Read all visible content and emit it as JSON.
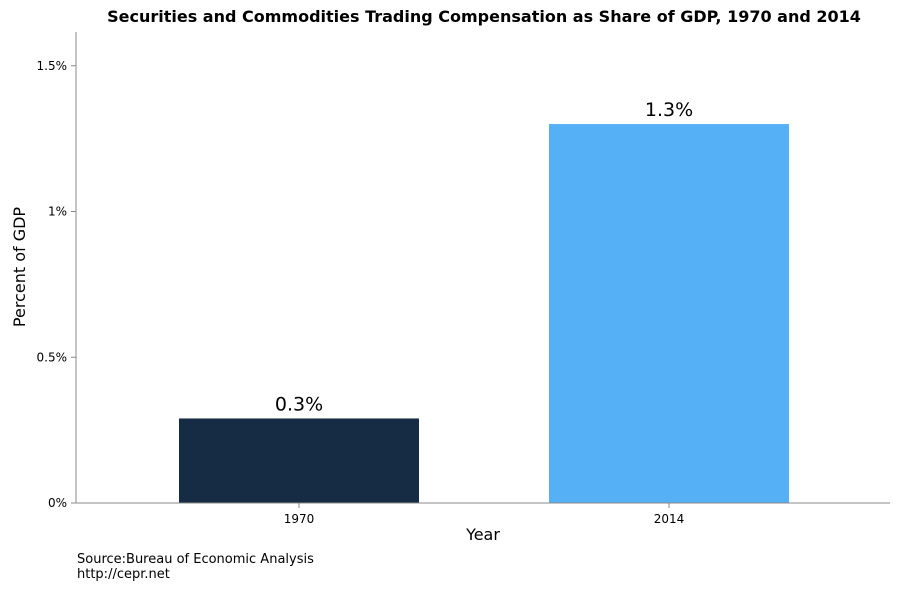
{
  "chart_data": {
    "type": "bar",
    "title": "Securities and Commodities Trading Compensation as Share of GDP, 1970 and 2014",
    "xlabel": "Year",
    "ylabel": "Percent of GDP",
    "categories": [
      "1970",
      "2014"
    ],
    "values": [
      0.29,
      1.3
    ],
    "data_labels": [
      "0.3%",
      "1.3%"
    ],
    "bar_colors": [
      "#162c45",
      "#56b0f6"
    ],
    "yticks": [
      0,
      0.5,
      1,
      1.5
    ],
    "ytick_labels": [
      "0%",
      "0.5%",
      "1%",
      "1.5%"
    ],
    "ylim": [
      0,
      1.6
    ],
    "grid": false,
    "legend": "none"
  },
  "footer": {
    "source": "Source:Bureau of Economic Analysis",
    "url": "http://cepr.net"
  }
}
